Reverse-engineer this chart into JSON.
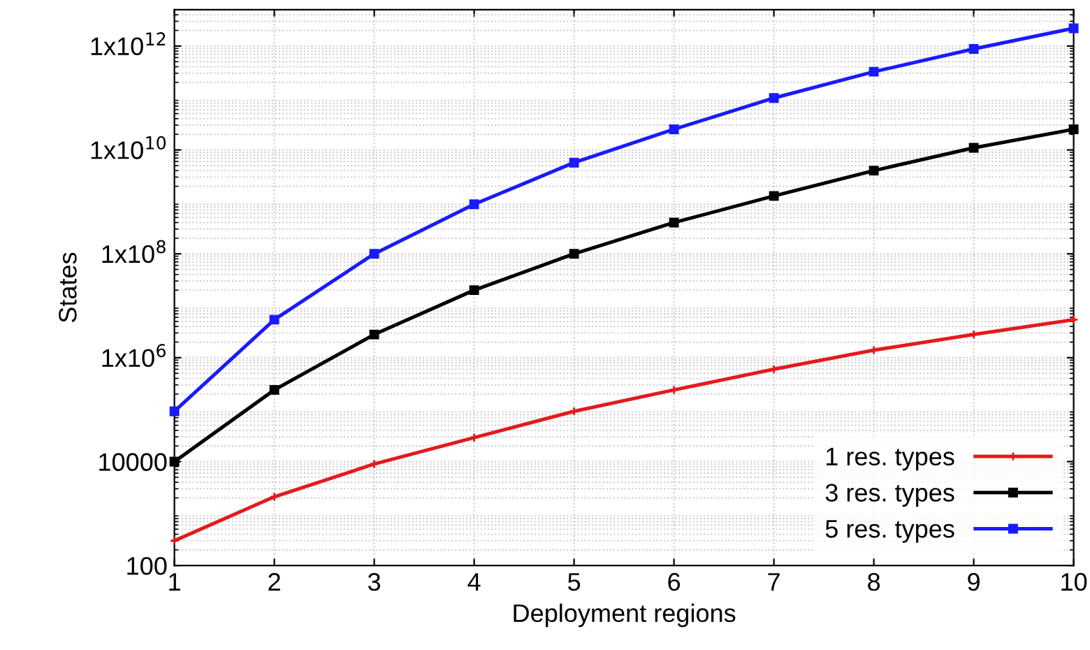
{
  "chart_data": {
    "type": "line",
    "xlabel": "Deployment regions",
    "ylabel": "States",
    "log": "y",
    "x": [
      1,
      2,
      3,
      4,
      5,
      6,
      7,
      8,
      9,
      10
    ],
    "series": [
      {
        "name": "1 res. types",
        "color": "#e41a1c",
        "marker": "cross",
        "values": [
          300,
          2100,
          9000,
          29000,
          93000,
          240000,
          600000,
          1400000,
          2800000,
          5400000
        ]
      },
      {
        "name": "3 res. types",
        "color": "#000000",
        "marker": "square",
        "values": [
          10000,
          240000,
          2800000,
          20000000,
          100000000,
          400000000,
          1300000000,
          4000000000,
          11000000000,
          25000000000
        ]
      },
      {
        "name": "5 res. types",
        "color": "#1a1aff",
        "marker": "square",
        "values": [
          93000,
          5400000,
          100000000,
          900000000,
          5700000000,
          25000000000,
          100000000000,
          320000000000,
          880000000000,
          2200000000000
        ]
      }
    ],
    "xlim": [
      1,
      10
    ],
    "xticks": [
      1,
      2,
      3,
      4,
      5,
      6,
      7,
      8,
      9,
      10
    ],
    "ylim": [
      100,
      5000000000000
    ],
    "yticks": [
      100,
      10000,
      {
        "value": 1000000,
        "label": "1x10$^{6}$"
      },
      {
        "value": 100000000,
        "label": "1x10$^{8}$"
      },
      {
        "value": 10000000000,
        "label": "1x10$^{10}$"
      },
      {
        "value": 1000000000000,
        "label": "1x10$^{12}$"
      }
    ],
    "grid": true,
    "legend": "bottom right",
    "line_style": "solid"
  }
}
